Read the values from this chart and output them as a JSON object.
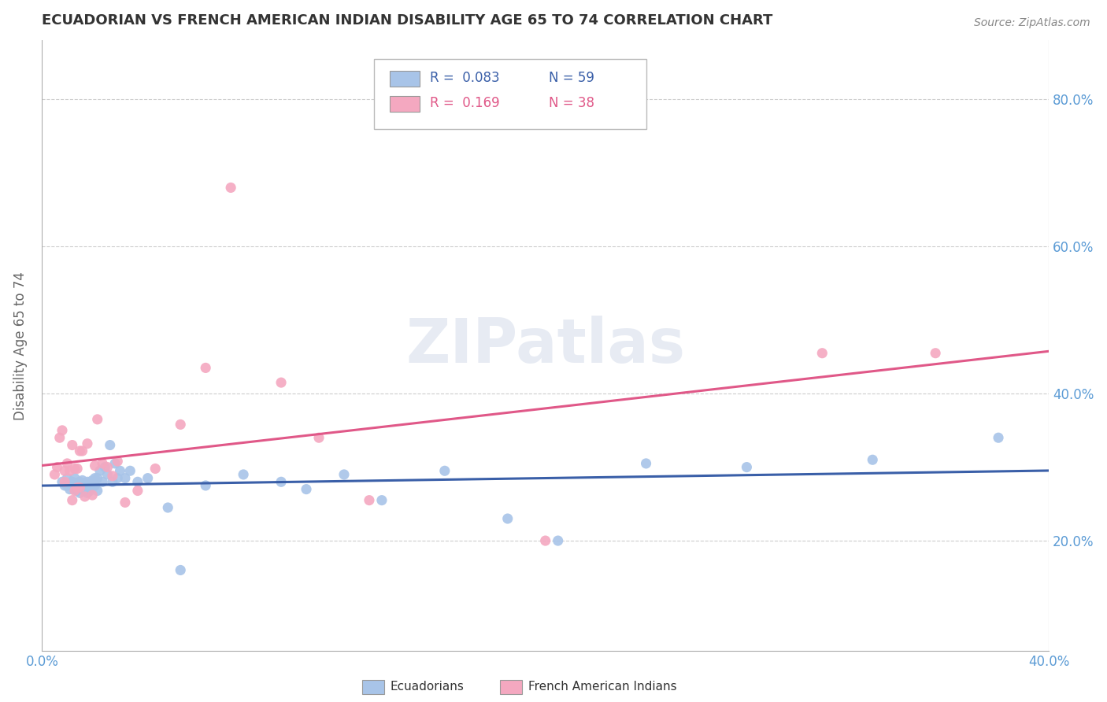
{
  "title": "ECUADORIAN VS FRENCH AMERICAN INDIAN DISABILITY AGE 65 TO 74 CORRELATION CHART",
  "source": "Source: ZipAtlas.com",
  "ylabel": "Disability Age 65 to 74",
  "xlim": [
    0.0,
    0.4
  ],
  "ylim": [
    0.05,
    0.88
  ],
  "ytick_labels": [
    "20.0%",
    "40.0%",
    "60.0%",
    "80.0%"
  ],
  "ytick_values": [
    0.2,
    0.4,
    0.6,
    0.8
  ],
  "xtick_labels": [
    "0.0%",
    "40.0%"
  ],
  "xtick_values": [
    0.0,
    0.4
  ],
  "blue_color": "#a8c4e8",
  "pink_color": "#f4a8c0",
  "blue_line_color": "#3a5fa8",
  "pink_line_color": "#e05888",
  "title_color": "#333333",
  "axis_label_color": "#5b9bd5",
  "ecuadorians_x": [
    0.008,
    0.009,
    0.01,
    0.01,
    0.011,
    0.012,
    0.012,
    0.013,
    0.013,
    0.013,
    0.014,
    0.014,
    0.015,
    0.015,
    0.015,
    0.016,
    0.016,
    0.016,
    0.017,
    0.017,
    0.018,
    0.018,
    0.018,
    0.019,
    0.019,
    0.02,
    0.02,
    0.021,
    0.021,
    0.022,
    0.022,
    0.023,
    0.024,
    0.025,
    0.026,
    0.027,
    0.028,
    0.029,
    0.03,
    0.031,
    0.033,
    0.035,
    0.038,
    0.042,
    0.05,
    0.055,
    0.065,
    0.08,
    0.095,
    0.105,
    0.12,
    0.135,
    0.16,
    0.185,
    0.205,
    0.24,
    0.28,
    0.33,
    0.38
  ],
  "ecuadorians_y": [
    0.28,
    0.275,
    0.275,
    0.285,
    0.27,
    0.275,
    0.28,
    0.27,
    0.275,
    0.285,
    0.268,
    0.278,
    0.265,
    0.272,
    0.28,
    0.27,
    0.275,
    0.282,
    0.268,
    0.278,
    0.265,
    0.272,
    0.28,
    0.268,
    0.278,
    0.275,
    0.282,
    0.275,
    0.285,
    0.268,
    0.285,
    0.295,
    0.28,
    0.3,
    0.29,
    0.33,
    0.28,
    0.305,
    0.285,
    0.295,
    0.285,
    0.295,
    0.28,
    0.285,
    0.245,
    0.16,
    0.275,
    0.29,
    0.28,
    0.27,
    0.29,
    0.255,
    0.295,
    0.23,
    0.2,
    0.305,
    0.3,
    0.31,
    0.34
  ],
  "french_x": [
    0.005,
    0.006,
    0.007,
    0.008,
    0.009,
    0.009,
    0.01,
    0.011,
    0.012,
    0.012,
    0.013,
    0.013,
    0.014,
    0.014,
    0.015,
    0.015,
    0.016,
    0.017,
    0.018,
    0.02,
    0.021,
    0.022,
    0.024,
    0.026,
    0.028,
    0.03,
    0.033,
    0.038,
    0.045,
    0.055,
    0.065,
    0.075,
    0.095,
    0.11,
    0.13,
    0.2,
    0.31,
    0.355
  ],
  "french_y": [
    0.29,
    0.3,
    0.34,
    0.35,
    0.28,
    0.295,
    0.305,
    0.295,
    0.255,
    0.33,
    0.268,
    0.298,
    0.272,
    0.298,
    0.322,
    0.272,
    0.322,
    0.26,
    0.332,
    0.262,
    0.302,
    0.365,
    0.305,
    0.3,
    0.288,
    0.308,
    0.252,
    0.268,
    0.298,
    0.358,
    0.435,
    0.68,
    0.415,
    0.34,
    0.255,
    0.2,
    0.455,
    0.455
  ]
}
